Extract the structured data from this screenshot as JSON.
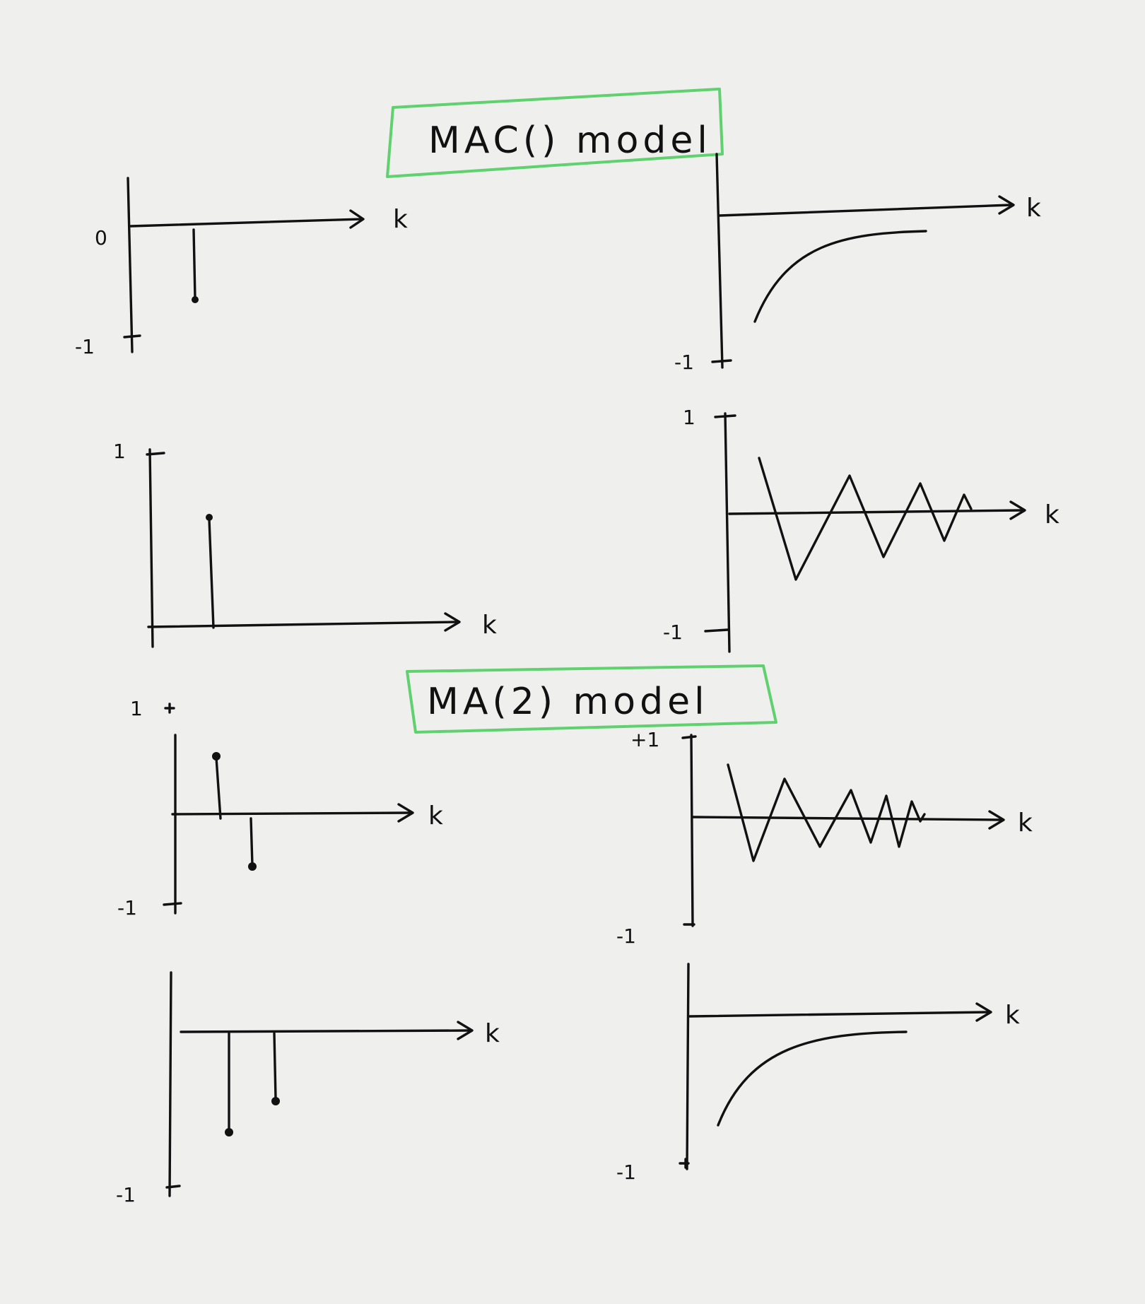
{
  "titles": {
    "ma1": "MAC() model",
    "ma2": "MA(2) model"
  },
  "colors": {
    "ink": "#111111",
    "box": "#5fd16f",
    "paper": "#efefee"
  },
  "panels": {
    "p1": {
      "axis": "k",
      "tick_top": "0",
      "tick_bottom": "-1"
    },
    "p2": {
      "axis": "k",
      "tick_bottom": "-1"
    },
    "p3": {
      "axis": "k",
      "tick_top": "1"
    },
    "p4": {
      "axis": "k",
      "tick_top": "1",
      "tick_bottom": "-1"
    },
    "p5": {
      "axis": "k",
      "tick_top": "1",
      "tick_bottom": "-1"
    },
    "p6": {
      "axis": "k",
      "tick_top": "+1",
      "tick_bottom": "-1"
    },
    "p7": {
      "axis": "k",
      "tick_bottom": "-1"
    },
    "p8": {
      "axis": "k",
      "tick_bottom": "-1"
    }
  }
}
